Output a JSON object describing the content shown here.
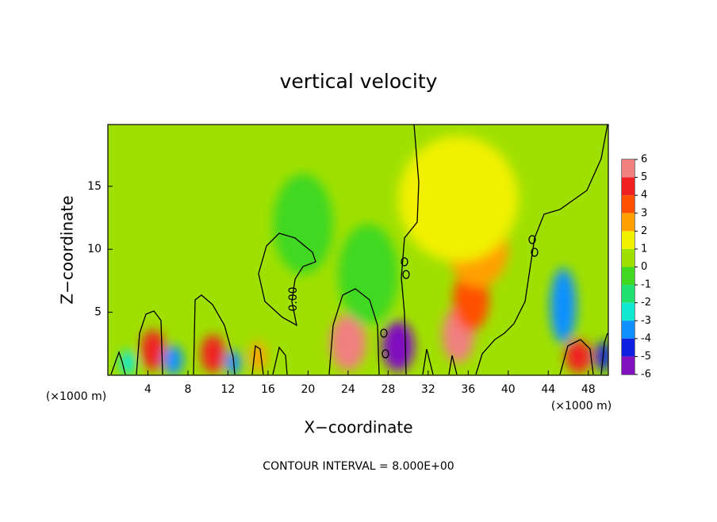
{
  "chart_data": {
    "type": "contour",
    "title": "vertical velocity",
    "x_label": "X−coordinate",
    "y_label": "Z−coordinate",
    "x_unit_labels": [
      "(×1000 m)",
      "(×1000 m)"
    ],
    "footer": "CONTOUR INTERVAL = 8.000E+00",
    "contour_labels": [
      "0.00"
    ],
    "xlim": [
      0,
      50
    ],
    "xticks": [
      4,
      8,
      12,
      16,
      20,
      24,
      28,
      32,
      36,
      40,
      44,
      48
    ],
    "ylim": [
      0,
      19.9
    ],
    "yticks": [
      5,
      10,
      15
    ],
    "colorbar_ticks": [
      6,
      5,
      4,
      3,
      2,
      1,
      0,
      -1,
      -2,
      -3,
      -4,
      -5,
      -6
    ],
    "colorbar_colors": [
      "#f08080",
      "#f02020",
      "#ff5000",
      "#ffa000",
      "#f0f000",
      "#a0e000",
      "#40d820",
      "#20e070",
      "#10e8d0",
      "#1090ff",
      "#1020e0",
      "#8010c0"
    ],
    "background_value": 0.3,
    "features": [
      {
        "x": 4.5,
        "z": 2,
        "dx": 1.2,
        "dz": 1.6,
        "value": 4.5
      },
      {
        "x": 10.5,
        "z": 1.7,
        "dx": 1.2,
        "dz": 1.5,
        "value": 4.5
      },
      {
        "x": 15,
        "z": 1.5,
        "dx": 0.8,
        "dz": 1.2,
        "value": 2.5
      },
      {
        "x": 24,
        "z": 2.6,
        "dx": 1.8,
        "dz": 2.2,
        "value": 5.5
      },
      {
        "x": 35,
        "z": 3.2,
        "dx": 1.6,
        "dz": 2.2,
        "value": 5.5
      },
      {
        "x": 36.3,
        "z": 6,
        "dx": 1.8,
        "dz": 2.5,
        "value": 3.5
      },
      {
        "x": 37,
        "z": 10,
        "dx": 3,
        "dz": 3,
        "value": 2.5
      },
      {
        "x": 35,
        "z": 14,
        "dx": 6,
        "dz": 5,
        "value": 1.5
      },
      {
        "x": 47,
        "z": 1.5,
        "dx": 1.3,
        "dz": 1.3,
        "value": 4.5
      },
      {
        "x": 29,
        "z": 2.3,
        "dx": 1.6,
        "dz": 2,
        "value": -5.5
      },
      {
        "x": 45.5,
        "z": 5.5,
        "dx": 1.3,
        "dz": 3,
        "value": -3.5
      },
      {
        "x": 6.5,
        "z": 1.2,
        "dx": 1,
        "dz": 1.2,
        "value": -3.5
      },
      {
        "x": 2,
        "z": 1,
        "dx": 0.8,
        "dz": 1,
        "value": -2.5
      },
      {
        "x": 12.5,
        "z": 1,
        "dx": 0.8,
        "dz": 1,
        "value": -3.5
      },
      {
        "x": 49.5,
        "z": 1.5,
        "dx": 0.8,
        "dz": 1.2,
        "value": -4.5
      },
      {
        "x": 19.5,
        "z": 12,
        "dx": 3,
        "dz": 4,
        "value": -0.5
      },
      {
        "x": 26,
        "z": 8,
        "dx": 3,
        "dz": 4,
        "value": -0.5
      }
    ]
  }
}
